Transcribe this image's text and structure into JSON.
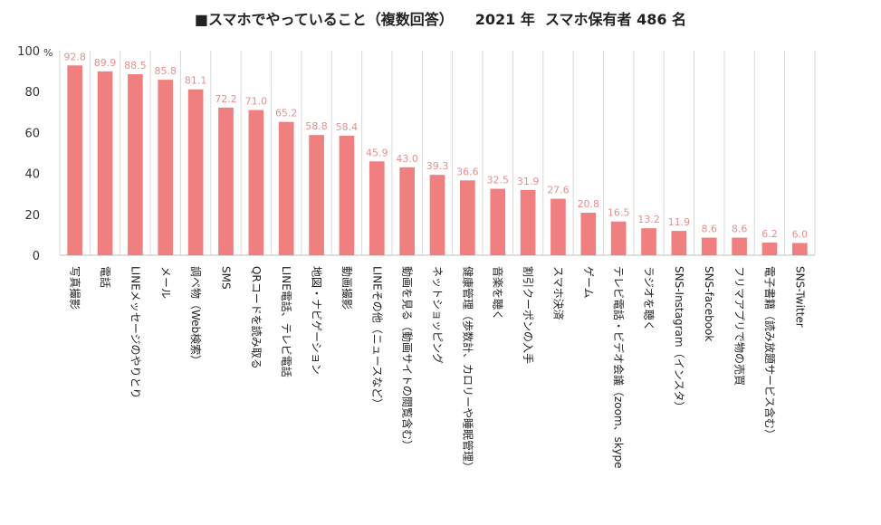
{
  "title": "■スマホでやっていること（複数回答）　　2021 年  スマホ保有者 486 名",
  "chart_data": {
    "type": "bar",
    "orientation": "vertical",
    "title": "■スマホでやっていること（複数回答）　　2021 年  スマホ保有者 486 名",
    "ylabel": "%",
    "ylim": [
      0,
      100
    ],
    "yticks": [
      0,
      20,
      40,
      60,
      80,
      100
    ],
    "grid": false,
    "legend": "none",
    "bar_color": "#f08080",
    "label_color": "#e88e8e",
    "categories": [
      "写真撮影",
      "電話",
      "LINEメッセージのやりとり",
      "メール",
      "調べ物（Web検索）",
      "SMS",
      "QRコードを読み取る",
      "LINE電話、テレビ電話",
      "地図・ナビゲーション",
      "動画撮影",
      "LINEその他（ニュースなど）",
      "動画を見る（動画サイトの閲覧含む）",
      "ネットショッピング",
      "健康管理（歩数計、カロリーや睡眠管理）",
      "音楽を聴く",
      "割引クーポンの入手",
      "スマホ決済",
      "ゲーム",
      "テレビ電話・ビデオ会議（zoom、skype",
      "ラジオを聴く",
      "SNS-Instagram（インスタ）",
      "SNS-facebook",
      "フリマアプリで物の売買",
      "電子書籍（読み放題サービス含む）",
      "SNS-Twitter"
    ],
    "values": [
      92.8,
      89.9,
      88.5,
      85.8,
      81.1,
      72.2,
      71.0,
      65.2,
      58.8,
      58.4,
      45.9,
      43.0,
      39.3,
      36.6,
      32.5,
      31.9,
      27.6,
      20.8,
      16.5,
      13.2,
      11.9,
      8.6,
      8.6,
      6.2,
      6.0
    ],
    "data_labels": [
      "92.8",
      "89.9",
      "88.5",
      "85.8",
      "81.1",
      "72.2",
      "71.0",
      "65.2",
      "58.8",
      "58.4",
      "45.9",
      "43.0",
      "39.3",
      "36.6",
      "32.5",
      "31.9",
      "27.6",
      "20.8",
      "16.5",
      "13.2",
      "11.9",
      "8.6",
      "8.6",
      "6.2",
      "6.0"
    ]
  }
}
